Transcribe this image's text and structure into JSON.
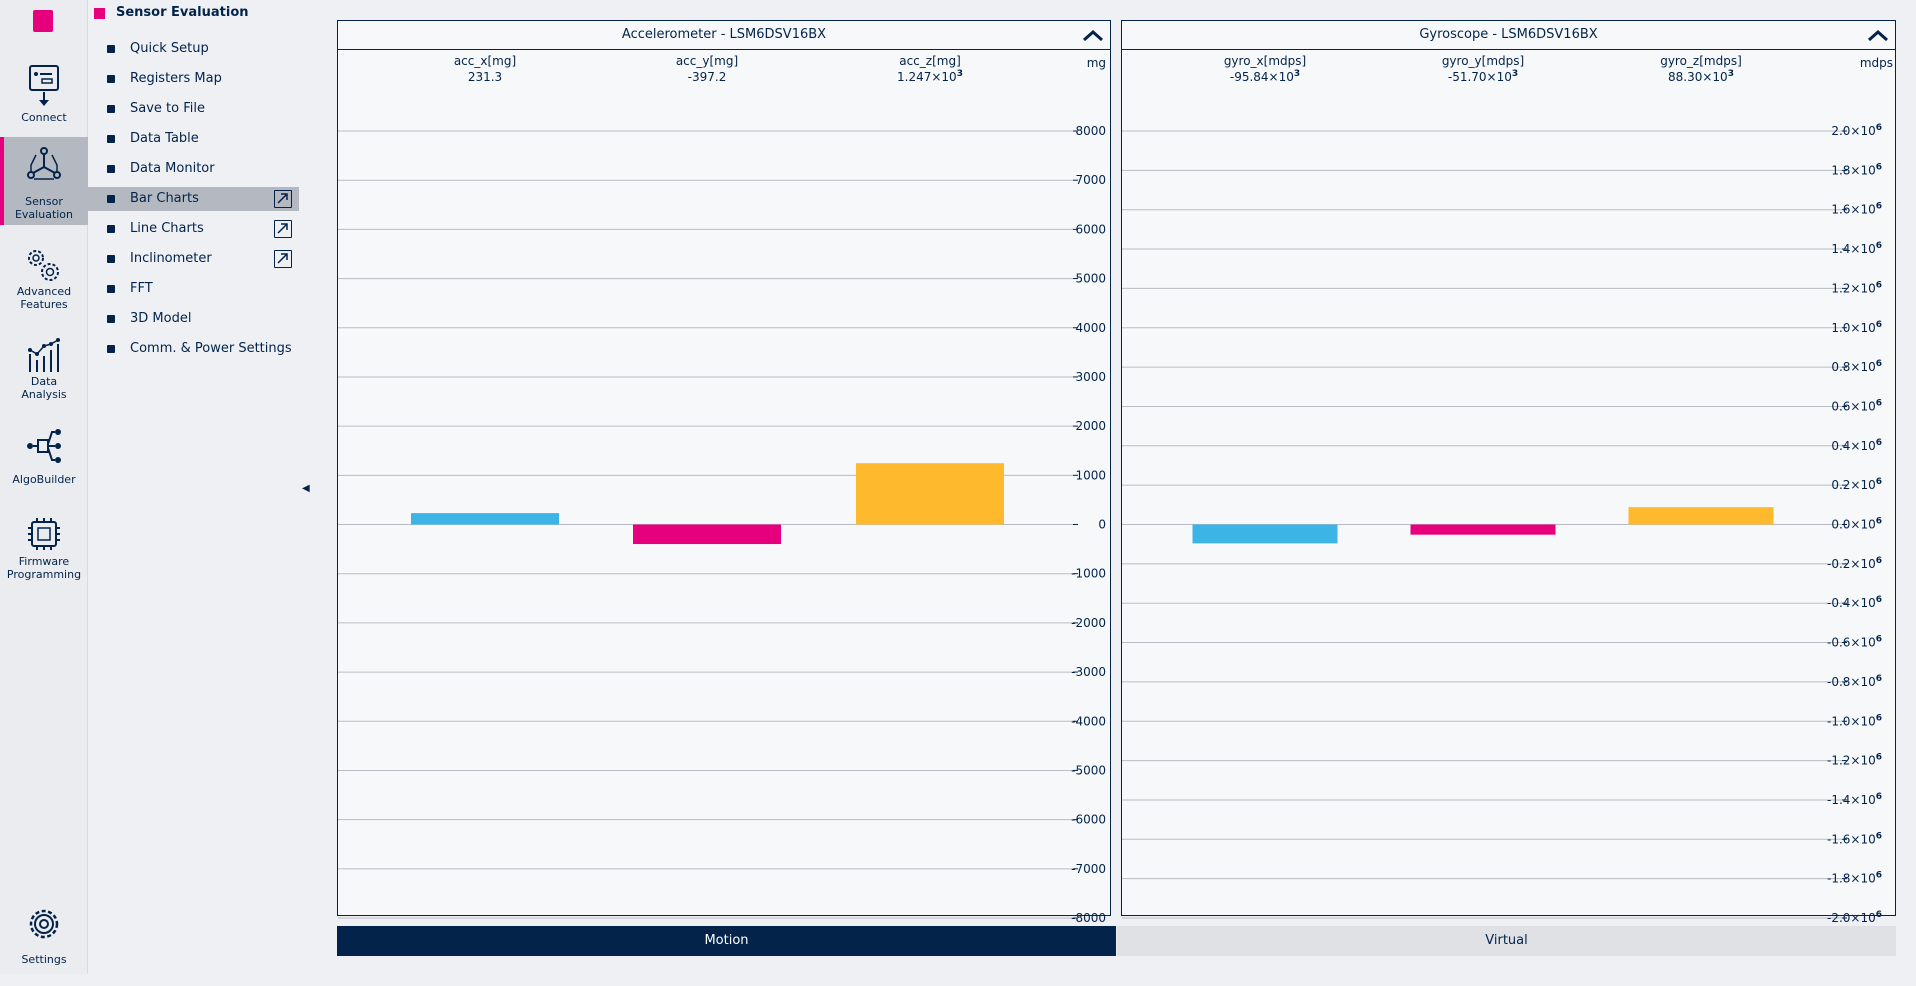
{
  "rail": {
    "items": [
      {
        "label": "Connect",
        "icon": "connect-icon"
      },
      {
        "label": "Sensor\nEvaluation",
        "icon": "sensor-evaluation-icon",
        "active": true
      },
      {
        "label": "Advanced\nFeatures",
        "icon": "gears-icon"
      },
      {
        "label": "Data\nAnalysis",
        "icon": "data-analysis-icon"
      },
      {
        "label": "AlgoBuilder",
        "icon": "algobuilder-icon"
      },
      {
        "label": "Firmware\nProgramming",
        "icon": "chip-icon"
      }
    ],
    "settings_label": "Settings"
  },
  "submenu": {
    "title": "Sensor Evaluation",
    "items": [
      {
        "label": "Quick Setup"
      },
      {
        "label": "Registers Map"
      },
      {
        "label": "Save to File"
      },
      {
        "label": "Data Table"
      },
      {
        "label": "Data Monitor"
      },
      {
        "label": "Bar Charts",
        "active": true,
        "popout": true
      },
      {
        "label": "Line Charts",
        "popout": true
      },
      {
        "label": "Inclinometer",
        "popout": true
      },
      {
        "label": "FFT"
      },
      {
        "label": "3D Model"
      },
      {
        "label": "Comm. & Power Settings"
      }
    ]
  },
  "accelerometer": {
    "title": "Accelerometer - LSM6DSV16BX"
  },
  "gyroscope": {
    "title": "Gyroscope - LSM6DSV16BX"
  },
  "tabs": {
    "motion": "Motion",
    "virtual": "Virtual"
  },
  "colors": {
    "accent": "#e6007e",
    "navy": "#03234b",
    "x_bar": "#3cb4e6",
    "y_bar": "#e6007e",
    "z_bar": "#ffb92d"
  },
  "chart_data": [
    {
      "type": "bar",
      "unit": "mg",
      "categories": [
        "acc_x[mg]",
        "acc_y[mg]",
        "acc_z[mg]"
      ],
      "values": [
        231.3,
        -397.2,
        1247
      ],
      "value_labels": [
        "231.3",
        "-397.2",
        "1.247×10"
      ],
      "value_exponents": [
        "",
        "",
        "3"
      ],
      "ylim": [
        -8000,
        8000
      ],
      "ticks": [
        8000,
        7000,
        6000,
        5000,
        4000,
        3000,
        2000,
        1000,
        0,
        -1000,
        -2000,
        -3000,
        -4000,
        -5000,
        -6000,
        -7000,
        -8000
      ],
      "tick_labels": [
        "8000",
        "7000",
        "6000",
        "5000",
        "4000",
        "3000",
        "2000",
        "1000",
        "0",
        "-1000",
        "-2000",
        "-3000",
        "-4000",
        "-5000",
        "-6000",
        "-7000",
        "-8000"
      ],
      "tick_exponents": [],
      "grid": true
    },
    {
      "type": "bar",
      "unit": "mdps",
      "categories": [
        "gyro_x[mdps]",
        "gyro_y[mdps]",
        "gyro_z[mdps]"
      ],
      "values": [
        -95840,
        -51700,
        88300
      ],
      "value_labels": [
        "-95.84×10",
        "-51.70×10",
        "88.30×10"
      ],
      "value_exponents": [
        "3",
        "3",
        "3"
      ],
      "ylim": [
        -2000000,
        2000000
      ],
      "ticks": [
        2000000,
        1800000,
        1600000,
        1400000,
        1200000,
        1000000,
        800000,
        600000,
        400000,
        200000,
        0,
        -200000,
        -400000,
        -600000,
        -800000,
        -1000000,
        -1200000,
        -1400000,
        -1600000,
        -1800000,
        -2000000
      ],
      "tick_labels": [
        "2.0×10",
        "1.8×10",
        "1.6×10",
        "1.4×10",
        "1.2×10",
        "1.0×10",
        "0.8×10",
        "0.6×10",
        "0.4×10",
        "0.2×10",
        "0.0×10",
        "-0.2×10",
        "-0.4×10",
        "-0.6×10",
        "-0.8×10",
        "-1.0×10",
        "-1.2×10",
        "-1.4×10",
        "-1.6×10",
        "-1.8×10",
        "-2.0×10"
      ],
      "tick_exponents": [
        "6"
      ],
      "grid": true
    }
  ]
}
